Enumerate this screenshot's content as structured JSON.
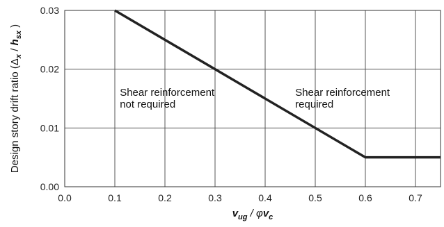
{
  "chart_data": {
    "type": "line",
    "title": "",
    "xlabel": {
      "main": "v",
      "sub": "ug",
      "slash": " / ",
      "phi": "φ",
      "main2": "v",
      "sub2": "c"
    },
    "ylabel": {
      "prefix": "Design story drift ratio (",
      "delta": "Δ",
      "sub1": "x",
      "slash": " / ",
      "h": "h",
      "sub2": "sx",
      "suffix": " )"
    },
    "xlim": [
      0.0,
      0.75
    ],
    "ylim": [
      0.0,
      0.03
    ],
    "xticks": [
      0.0,
      0.1,
      0.2,
      0.3,
      0.4,
      0.5,
      0.6,
      0.7
    ],
    "xtick_labels": [
      "0.0",
      "0.1",
      "0.2",
      "0.3",
      "0.4",
      "0.5",
      "0.6",
      "0.7"
    ],
    "yticks": [
      0.0,
      0.01,
      0.02,
      0.03
    ],
    "ytick_labels": [
      "0.00",
      "0.01",
      "0.02",
      "0.03"
    ],
    "grid": true,
    "series": [
      {
        "x": [
          0.1,
          0.6,
          0.75
        ],
        "y": [
          0.03,
          0.005,
          0.005
        ],
        "color": "#222222"
      }
    ],
    "annotations": [
      {
        "lines": [
          "Shear reinforcement",
          "not required"
        ],
        "x": 0.11,
        "y": 0.0155
      },
      {
        "lines": [
          "Shear reinforcement",
          "required"
        ],
        "x": 0.46,
        "y": 0.0155
      }
    ]
  }
}
